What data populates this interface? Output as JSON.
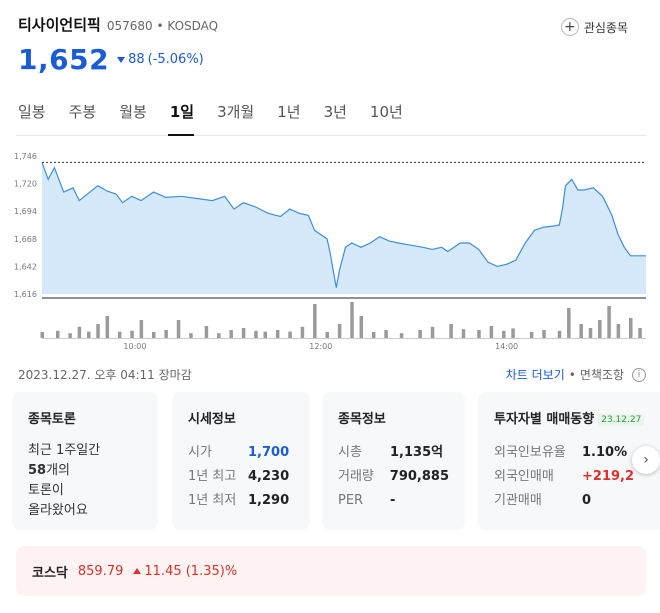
{
  "stock": {
    "name": "티사이언티픽",
    "code": "057680",
    "separator": "•",
    "market": "KOSDAQ",
    "price": "1,652",
    "change_amount": "88",
    "change_pct": "(-5.06%)",
    "watch_label": "관심종목"
  },
  "tabs": [
    "일봉",
    "주봉",
    "월봉",
    "1일",
    "3개월",
    "1년",
    "3년",
    "10년"
  ],
  "active_tab": "1일",
  "status": {
    "timestamp": "2023.12.27. 오후 04:11 장마감",
    "more_chart": "차트 더보기",
    "dot": "•",
    "disclaimer": "면책조항"
  },
  "cards": {
    "discussion": {
      "title": "종목토론",
      "line1": "최근 1주일간",
      "count": "58",
      "count_suffix": "개의",
      "line3": "토론이",
      "line4": "올라왔어요"
    },
    "quote": {
      "title": "시세정보",
      "rows": [
        {
          "label": "시가",
          "value": "1,700"
        },
        {
          "label": "1년 최고",
          "value": "4,230"
        },
        {
          "label": "1년 최저",
          "value": "1,290"
        }
      ]
    },
    "company": {
      "title": "종목정보",
      "rows": [
        {
          "label": "시총",
          "value": "1,135억"
        },
        {
          "label": "거래량",
          "value": "790,885"
        },
        {
          "label": "PER",
          "value": "-"
        }
      ]
    },
    "investor": {
      "title": "투자자별 매매동향",
      "date": "23.12.27",
      "rows": [
        {
          "label": "외국인보유율",
          "value": "1.10%"
        },
        {
          "label": "외국인매매",
          "value": "+219,2"
        },
        {
          "label": "기관매매",
          "value": "0"
        }
      ]
    }
  },
  "index": {
    "name": "코스닥",
    "value": "859.79",
    "change": "11.45 (1.35)%"
  },
  "colors": {
    "up": "#e0312b",
    "down": "#1a5cd6",
    "area_fill": "#d6e9fb",
    "line": "#3d8ee0",
    "volume": "#9a9a9a"
  },
  "icons": {
    "watch": "plus-circle-icon",
    "change_down": "triangle-down-icon",
    "change_up": "triangle-up-icon",
    "info": "info-circle-icon",
    "next": "chevron-right-icon"
  },
  "chart_data": {
    "type": "area",
    "title": "",
    "y_ticks": [
      "1,746",
      "1,720",
      "1,694",
      "1,668",
      "1,642",
      "1,616"
    ],
    "ylim": [
      1616,
      1746
    ],
    "prev_close": 1740,
    "x_ticks": [
      "10:00",
      "12:00",
      "14:00"
    ],
    "x_tick_index": [
      60,
      180,
      300
    ],
    "x_count": 391,
    "price": [
      [
        0,
        1740
      ],
      [
        4,
        1724
      ],
      [
        8,
        1735
      ],
      [
        14,
        1712
      ],
      [
        20,
        1716
      ],
      [
        24,
        1704
      ],
      [
        30,
        1711
      ],
      [
        36,
        1718
      ],
      [
        42,
        1713
      ],
      [
        48,
        1710
      ],
      [
        52,
        1702
      ],
      [
        58,
        1708
      ],
      [
        64,
        1704
      ],
      [
        72,
        1712
      ],
      [
        80,
        1707
      ],
      [
        90,
        1708
      ],
      [
        100,
        1706
      ],
      [
        110,
        1704
      ],
      [
        118,
        1708
      ],
      [
        124,
        1696
      ],
      [
        130,
        1702
      ],
      [
        138,
        1698
      ],
      [
        146,
        1692
      ],
      [
        154,
        1689
      ],
      [
        160,
        1696
      ],
      [
        166,
        1692
      ],
      [
        172,
        1690
      ],
      [
        176,
        1676
      ],
      [
        180,
        1672
      ],
      [
        184,
        1668
      ],
      [
        186,
        1655
      ],
      [
        188,
        1638
      ],
      [
        190,
        1622
      ],
      [
        192,
        1638
      ],
      [
        196,
        1660
      ],
      [
        200,
        1664
      ],
      [
        206,
        1660
      ],
      [
        212,
        1664
      ],
      [
        218,
        1670
      ],
      [
        224,
        1666
      ],
      [
        230,
        1664
      ],
      [
        238,
        1662
      ],
      [
        246,
        1660
      ],
      [
        252,
        1658
      ],
      [
        258,
        1660
      ],
      [
        262,
        1656
      ],
      [
        266,
        1660
      ],
      [
        270,
        1664
      ],
      [
        276,
        1664
      ],
      [
        282,
        1658
      ],
      [
        288,
        1646
      ],
      [
        294,
        1642
      ],
      [
        300,
        1644
      ],
      [
        306,
        1648
      ],
      [
        312,
        1664
      ],
      [
        318,
        1676
      ],
      [
        324,
        1679
      ],
      [
        330,
        1680
      ],
      [
        334,
        1681
      ],
      [
        336,
        1696
      ],
      [
        338,
        1718
      ],
      [
        342,
        1724
      ],
      [
        346,
        1714
      ],
      [
        350,
        1714
      ],
      [
        356,
        1716
      ],
      [
        362,
        1708
      ],
      [
        368,
        1690
      ],
      [
        372,
        1672
      ],
      [
        376,
        1660
      ],
      [
        380,
        1652
      ],
      [
        384,
        1652
      ],
      [
        390,
        1652
      ]
    ],
    "volume": [
      [
        0,
        0.15
      ],
      [
        10,
        0.18
      ],
      [
        18,
        0.12
      ],
      [
        24,
        0.28
      ],
      [
        30,
        0.16
      ],
      [
        36,
        0.35
      ],
      [
        42,
        0.55
      ],
      [
        50,
        0.16
      ],
      [
        58,
        0.18
      ],
      [
        64,
        0.45
      ],
      [
        72,
        0.15
      ],
      [
        80,
        0.2
      ],
      [
        88,
        0.45
      ],
      [
        96,
        0.12
      ],
      [
        106,
        0.3
      ],
      [
        114,
        0.12
      ],
      [
        122,
        0.2
      ],
      [
        130,
        0.25
      ],
      [
        138,
        0.18
      ],
      [
        144,
        0.16
      ],
      [
        152,
        0.2
      ],
      [
        160,
        0.16
      ],
      [
        168,
        0.28
      ],
      [
        176,
        0.85
      ],
      [
        184,
        0.15
      ],
      [
        192,
        0.35
      ],
      [
        200,
        0.9
      ],
      [
        206,
        0.55
      ],
      [
        214,
        0.15
      ],
      [
        222,
        0.2
      ],
      [
        232,
        0.12
      ],
      [
        244,
        0.2
      ],
      [
        252,
        0.28
      ],
      [
        264,
        0.35
      ],
      [
        272,
        0.22
      ],
      [
        282,
        0.2
      ],
      [
        290,
        0.3
      ],
      [
        298,
        0.18
      ],
      [
        304,
        0.24
      ],
      [
        316,
        0.15
      ],
      [
        324,
        0.2
      ],
      [
        334,
        0.18
      ],
      [
        340,
        0.75
      ],
      [
        348,
        0.35
      ],
      [
        354,
        0.25
      ],
      [
        360,
        0.45
      ],
      [
        366,
        0.8
      ],
      [
        372,
        0.35
      ],
      [
        380,
        0.5
      ],
      [
        386,
        0.25
      ]
    ]
  }
}
